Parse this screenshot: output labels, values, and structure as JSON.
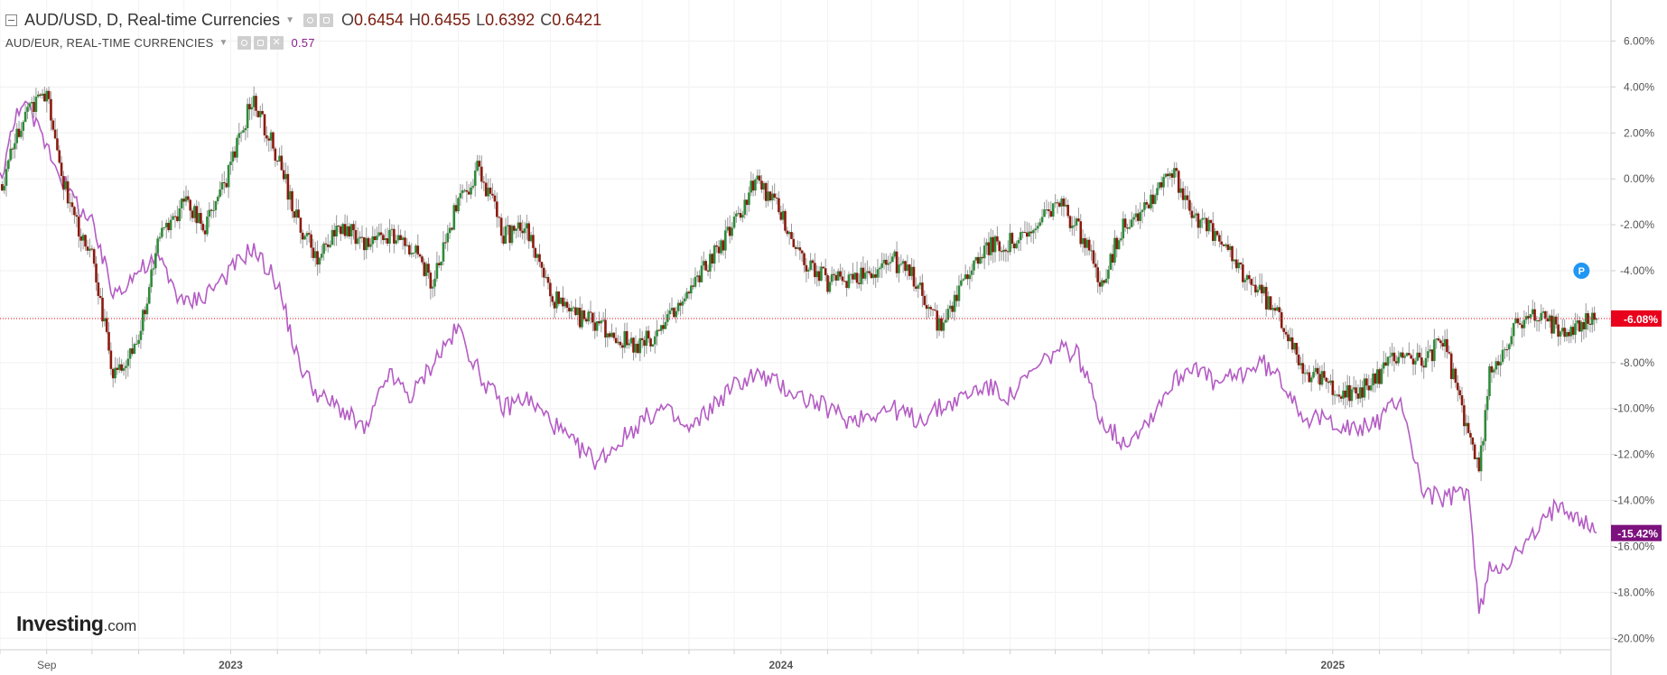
{
  "legend": {
    "main_title": "AUD/USD, D, Real-time Currencies",
    "open_label": "O",
    "open_value": "0.6454",
    "high_label": "H",
    "high_value": "0.6455",
    "low_label": "L",
    "low_value": "0.6392",
    "close_label": "C",
    "close_value": "0.6421",
    "compare_title": "AUD/EUR, REAL-TIME CURRENCIES",
    "compare_value": "0.57"
  },
  "logo": {
    "main": "Investing",
    "suffix": ".com"
  },
  "marker_badge": "P",
  "colors": {
    "up_candle": "#2e8b3a",
    "down_candle": "#8b1a0e",
    "wick": "#999999",
    "compare_line": "#b45cc4",
    "current_line": "#e8001c",
    "compare_tag": "#7d117d",
    "badge": "#2196f3"
  },
  "chart_data": {
    "type": "line",
    "y_scale": "percent change",
    "ylim": [
      -20.5,
      7
    ],
    "yticks": [
      "6.00%",
      "4.00%",
      "2.00%",
      "0.00%",
      "-2.00%",
      "-4.00%",
      "-6.00%",
      "-8.00%",
      "-10.00%",
      "-12.00%",
      "-14.00%",
      "-16.00%",
      "-18.00%",
      "-20.00%"
    ],
    "ytick_values": [
      6,
      4,
      2,
      0,
      -2,
      -4,
      -6,
      -8,
      -10,
      -12,
      -14,
      -16,
      -18,
      -20
    ],
    "x_labels": [
      "Sep",
      "2023",
      "2024",
      "2025"
    ],
    "x_label_dates": [
      "2022-09-01",
      "2023-01-01",
      "2024-01-01",
      "2025-01-01"
    ],
    "x_range": [
      "2022-08-01",
      "2025-06-25"
    ],
    "grid": true,
    "current_values": {
      "main": "-6.08%",
      "compare": "-15.42%"
    },
    "series": [
      {
        "name": "AUD/USD",
        "style": "candlestick",
        "dates": [
          "2022-08-01",
          "2022-08-15",
          "2022-09-01",
          "2022-09-15",
          "2022-10-01",
          "2022-10-15",
          "2022-11-01",
          "2022-11-15",
          "2022-12-01",
          "2022-12-15",
          "2023-01-01",
          "2023-01-15",
          "2023-02-01",
          "2023-02-15",
          "2023-03-01",
          "2023-03-15",
          "2023-04-01",
          "2023-04-15",
          "2023-05-01",
          "2023-05-15",
          "2023-06-01",
          "2023-06-15",
          "2023-07-01",
          "2023-07-15",
          "2023-08-01",
          "2023-08-15",
          "2023-09-01",
          "2023-09-15",
          "2023-10-01",
          "2023-10-15",
          "2023-11-01",
          "2023-11-15",
          "2023-12-01",
          "2023-12-15",
          "2024-01-01",
          "2024-01-15",
          "2024-02-01",
          "2024-02-15",
          "2024-03-01",
          "2024-03-15",
          "2024-04-01",
          "2024-04-15",
          "2024-05-01",
          "2024-05-15",
          "2024-06-01",
          "2024-06-15",
          "2024-07-01",
          "2024-07-15",
          "2024-08-01",
          "2024-08-15",
          "2024-09-01",
          "2024-09-15",
          "2024-10-01",
          "2024-10-15",
          "2024-11-01",
          "2024-11-15",
          "2024-12-01",
          "2024-12-15",
          "2025-01-01",
          "2025-01-15",
          "2025-02-01",
          "2025-02-15",
          "2025-03-01",
          "2025-03-15",
          "2025-04-01",
          "2025-04-08",
          "2025-04-15",
          "2025-05-01",
          "2025-05-15",
          "2025-06-01",
          "2025-06-25"
        ],
        "values": [
          -0.5,
          2.5,
          3.8,
          -1.0,
          -3.5,
          -8.5,
          -7.0,
          -2.5,
          -1.0,
          -2.0,
          0.5,
          3.5,
          1.0,
          -2.0,
          -3.5,
          -2.0,
          -3.0,
          -2.5,
          -3.0,
          -4.5,
          -1.0,
          0.5,
          -2.5,
          -2.0,
          -5.0,
          -6.0,
          -6.2,
          -7.0,
          -7.2,
          -6.5,
          -5.0,
          -3.5,
          -2.0,
          0.0,
          -1.5,
          -3.5,
          -4.5,
          -4.3,
          -4.0,
          -3.5,
          -4.5,
          -6.5,
          -4.5,
          -3.0,
          -2.8,
          -2.5,
          -1.0,
          -2.0,
          -4.5,
          -2.0,
          -1.0,
          0.5,
          -1.5,
          -2.5,
          -4.0,
          -5.0,
          -6.5,
          -8.5,
          -9.0,
          -9.5,
          -8.5,
          -7.5,
          -8.0,
          -7.0,
          -11.0,
          -12.8,
          -8.5,
          -6.5,
          -6.0,
          -6.5,
          -6.08
        ]
      },
      {
        "name": "AUD/EUR",
        "style": "line",
        "dates": [
          "2022-08-01",
          "2022-08-15",
          "2022-09-01",
          "2022-09-15",
          "2022-10-01",
          "2022-10-15",
          "2022-11-01",
          "2022-11-15",
          "2022-12-01",
          "2022-12-15",
          "2023-01-01",
          "2023-01-15",
          "2023-02-01",
          "2023-02-15",
          "2023-03-01",
          "2023-03-15",
          "2023-04-01",
          "2023-04-15",
          "2023-05-01",
          "2023-05-15",
          "2023-06-01",
          "2023-06-15",
          "2023-07-01",
          "2023-07-15",
          "2023-08-01",
          "2023-08-15",
          "2023-09-01",
          "2023-09-15",
          "2023-10-01",
          "2023-10-15",
          "2023-11-01",
          "2023-11-15",
          "2023-12-01",
          "2023-12-15",
          "2024-01-01",
          "2024-01-15",
          "2024-02-01",
          "2024-02-15",
          "2024-03-01",
          "2024-03-15",
          "2024-04-01",
          "2024-04-15",
          "2024-05-01",
          "2024-05-15",
          "2024-06-01",
          "2024-06-15",
          "2024-07-01",
          "2024-07-15",
          "2024-08-01",
          "2024-08-15",
          "2024-09-01",
          "2024-09-15",
          "2024-10-01",
          "2024-10-15",
          "2024-11-01",
          "2024-11-15",
          "2024-12-01",
          "2024-12-15",
          "2025-01-01",
          "2025-01-15",
          "2025-02-01",
          "2025-02-15",
          "2025-03-01",
          "2025-03-15",
          "2025-04-01",
          "2025-04-08",
          "2025-04-15",
          "2025-05-01",
          "2025-05-15",
          "2025-06-01",
          "2025-06-25"
        ],
        "values": [
          0.0,
          3.5,
          1.5,
          -0.5,
          -2.0,
          -5.0,
          -4.0,
          -3.5,
          -5.5,
          -5.0,
          -4.0,
          -3.0,
          -4.5,
          -8.0,
          -9.5,
          -10.0,
          -11.0,
          -8.5,
          -9.5,
          -8.0,
          -6.5,
          -8.5,
          -10.0,
          -9.5,
          -10.5,
          -11.5,
          -12.3,
          -11.5,
          -10.5,
          -10.0,
          -11.0,
          -10.0,
          -9.0,
          -8.5,
          -9.0,
          -9.5,
          -10.0,
          -10.5,
          -10.2,
          -10.0,
          -10.5,
          -10.0,
          -9.5,
          -9.0,
          -9.5,
          -8.5,
          -7.5,
          -7.5,
          -10.5,
          -11.5,
          -10.5,
          -9.0,
          -8.0,
          -9.0,
          -8.5,
          -8.0,
          -9.0,
          -10.5,
          -10.5,
          -11.0,
          -10.5,
          -9.5,
          -13.5,
          -14.0,
          -13.5,
          -19.0,
          -17.0,
          -16.5,
          -15.5,
          -14.0,
          -15.42
        ]
      }
    ]
  }
}
